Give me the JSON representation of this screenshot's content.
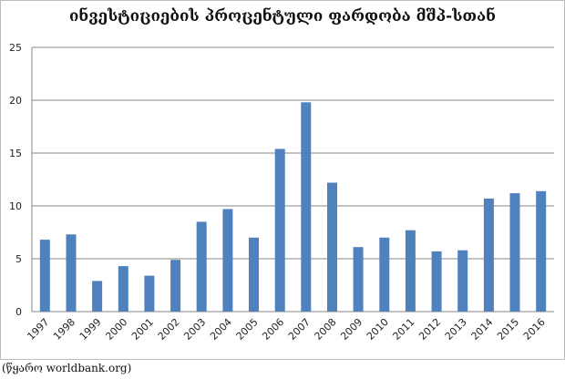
{
  "chart_data": {
    "type": "bar",
    "title": "ინვესტიციების პროცენტული ფარდობა მშპ-სთან",
    "categories": [
      "1997",
      "1998",
      "1999",
      "2000",
      "2001",
      "2002",
      "2003",
      "2004",
      "2005",
      "2006",
      "2007",
      "2008",
      "2009",
      "2010",
      "2011",
      "2012",
      "2013",
      "2014",
      "2015",
      "2016"
    ],
    "series": [
      {
        "values": [
          6.8,
          7.3,
          2.9,
          4.3,
          3.4,
          4.9,
          8.5,
          9.7,
          7.0,
          15.4,
          19.8,
          12.2,
          6.1,
          7.0,
          7.7,
          5.7,
          5.8,
          10.7,
          11.2,
          11.4
        ]
      }
    ],
    "ylim": [
      0,
      25
    ],
    "yticks": [
      "0",
      "5",
      "10",
      "15",
      "20",
      "25"
    ],
    "grid": true,
    "legend": "none",
    "bar_color": "#4f81bd",
    "grid_color": "#878787"
  },
  "source_note": "(წყარო worldbank.org)"
}
